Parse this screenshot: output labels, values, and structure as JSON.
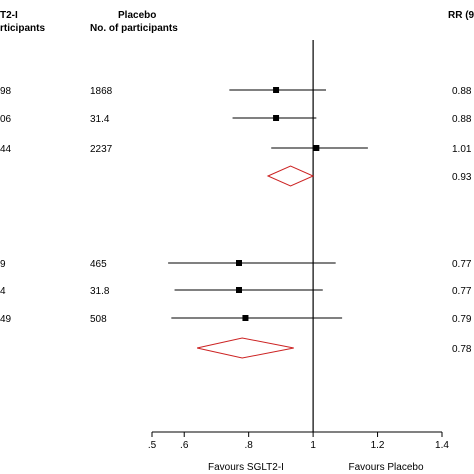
{
  "chart_data": {
    "type": "forest",
    "columns": {
      "sglt2_header_line1": "T2-I",
      "sglt2_header_line2": "rticipants",
      "placebo_header_line1": "Placebo",
      "placebo_header_line2": "No. of participants",
      "rr_header": "RR (9"
    },
    "x_axis": {
      "ticks": [
        0.5,
        0.6,
        0.8,
        1.0,
        1.2,
        1.4
      ],
      "tick_labels": [
        ".5",
        ".6",
        ".8",
        "1",
        "1.2",
        "1.4"
      ],
      "xlim": [
        0.5,
        1.4
      ],
      "null_line": 1.0,
      "label_left": "Favours SGLT2-I",
      "label_right": "Favours Placebo"
    },
    "rows": [
      {
        "kind": "study",
        "sglt2_text": "98",
        "placebo_text": "1868",
        "rr_text": "0.88",
        "rr": 0.885,
        "ci": [
          0.74,
          1.04
        ]
      },
      {
        "kind": "study",
        "sglt2_text": "06",
        "placebo_text": "31.4",
        "rr_text": "0.88",
        "rr": 0.885,
        "ci": [
          0.75,
          1.01
        ]
      },
      {
        "kind": "study",
        "sglt2_text": "44",
        "placebo_text": "2237",
        "rr_text": "1.01",
        "rr": 1.01,
        "ci": [
          0.87,
          1.17
        ]
      },
      {
        "kind": "summary",
        "sglt2_text": "",
        "placebo_text": "",
        "rr_text": "0.93",
        "rr": 0.93,
        "ci": [
          0.86,
          1.0
        ]
      },
      {
        "kind": "study",
        "sglt2_text": "9",
        "placebo_text": "465",
        "rr_text": "0.77",
        "rr": 0.77,
        "ci": [
          0.55,
          1.07
        ]
      },
      {
        "kind": "study",
        "sglt2_text": "4",
        "placebo_text": "31.8",
        "rr_text": "0.77",
        "rr": 0.77,
        "ci": [
          0.57,
          1.03
        ]
      },
      {
        "kind": "study",
        "sglt2_text": "49",
        "placebo_text": "508",
        "rr_text": "0.79",
        "rr": 0.79,
        "ci": [
          0.56,
          1.09
        ]
      },
      {
        "kind": "summary",
        "sglt2_text": "",
        "placebo_text": "",
        "rr_text": "0.78",
        "rr": 0.78,
        "ci": [
          0.64,
          0.94
        ]
      }
    ],
    "colors": {
      "marker": "#000000",
      "summary_diamond": "#cc2222",
      "axis": "#000000"
    }
  }
}
